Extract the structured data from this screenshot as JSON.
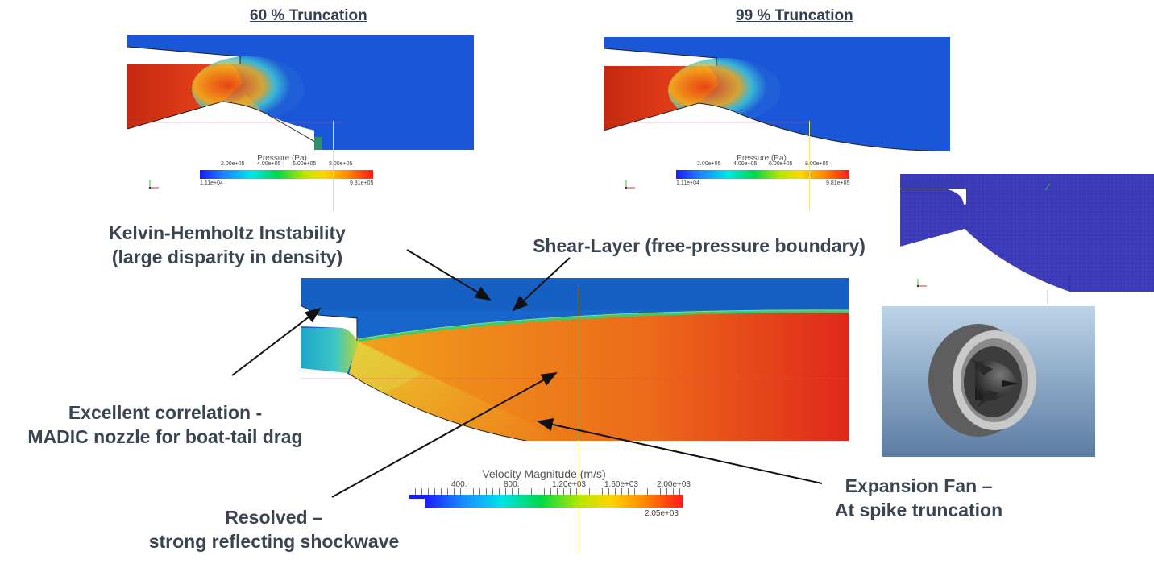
{
  "panels": {
    "top_left": {
      "title": "60 % Truncation",
      "colorbar": {
        "label": "Pressure (Pa)",
        "ticks": [
          "2.00e+05",
          "4.00e+05",
          "6.00e+05",
          "8.00e+05"
        ],
        "min": "1.11e+04",
        "max": "9.81e+05"
      }
    },
    "top_right": {
      "title": "99 % Truncation",
      "colorbar": {
        "label": "Pressure (Pa)",
        "ticks": [
          "2.00e+05",
          "4.00e+05",
          "6.00e+05",
          "8.00e+05"
        ],
        "min": "1.11e+04",
        "max": "9.81e+05"
      }
    },
    "main": {
      "colorbar": {
        "label": "Velocity Magnitude (m/s)",
        "ticks": [
          "400.",
          "800.",
          "1.20e+03",
          "1.60e+03",
          "2.00e+03"
        ],
        "max": "2.05e+03"
      }
    }
  },
  "annotations": {
    "kelvin": [
      "Kelvin-Hemholtz Instability",
      "(large disparity in density)"
    ],
    "shear": [
      "Shear-Layer (free-pressure boundary)"
    ],
    "excellent": [
      "Excellent correlation  -",
      "MADIC nozzle for boat-tail drag"
    ],
    "resolved": [
      "Resolved –",
      "strong reflecting shockwave"
    ],
    "expansion": [
      "Expansion Fan –",
      "At spike truncation"
    ]
  },
  "colors": {
    "annotation_text": "#3b4453",
    "title_text": "#333f50",
    "mesh_blue": "#3a3ab0",
    "sky_top": "#bcd3e6",
    "sky_bottom": "#5a7aa0"
  }
}
